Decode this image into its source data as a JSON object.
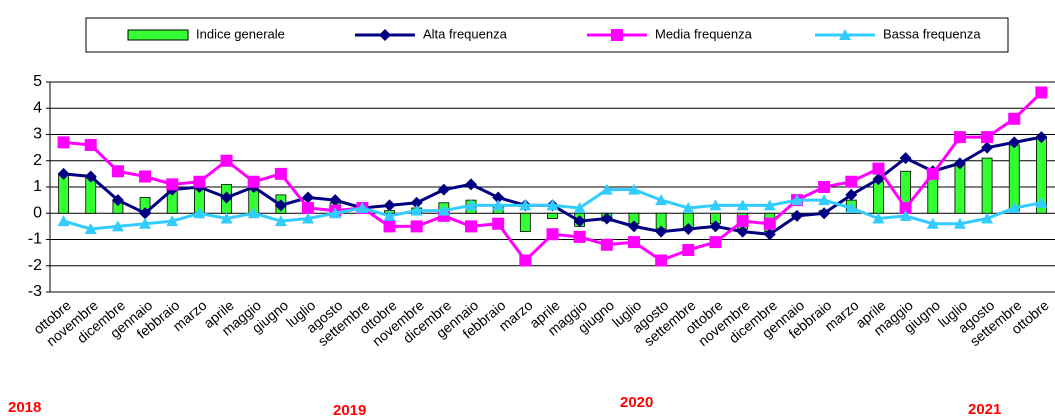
{
  "chart_data": {
    "type": "bar",
    "categories": [
      "ottobre",
      "novembre",
      "dicembre",
      "gennaio",
      "febbraio",
      "marzo",
      "aprile",
      "maggio",
      "giugno",
      "luglio",
      "agosto",
      "settembre",
      "ottobre",
      "novembre",
      "dicembre",
      "gennaio",
      "febbraio",
      "marzo",
      "aprile",
      "maggio",
      "giugno",
      "luglio",
      "agosto",
      "settembre",
      "ottobre",
      "novembre",
      "dicembre",
      "gennaio",
      "febbraio",
      "marzo",
      "aprile",
      "maggio",
      "giugno",
      "luglio",
      "agosto",
      "settembre",
      "ottobre"
    ],
    "series": [
      {
        "name": "Indice generale",
        "type": "bar",
        "color": "#33ff33",
        "values": [
          1.5,
          1.4,
          0.5,
          0.6,
          0.9,
          1.0,
          1.1,
          0.9,
          0.7,
          0.4,
          0.4,
          0.2,
          0.1,
          0.2,
          0.4,
          0.5,
          0.3,
          -0.7,
          -0.2,
          -0.5,
          -0.3,
          -0.4,
          -0.6,
          -0.6,
          -0.4,
          -0.6,
          -0.7,
          -0.1,
          0.1,
          0.5,
          1.2,
          1.6,
          1.3,
          1.9,
          2.1,
          2.6,
          2.9
        ]
      },
      {
        "name": "Alta frequenza",
        "type": "line",
        "marker": "diamond",
        "color": "#000080",
        "values": [
          1.5,
          1.4,
          0.5,
          0.0,
          0.9,
          1.0,
          0.6,
          1.0,
          0.3,
          0.6,
          0.5,
          0.2,
          0.3,
          0.4,
          0.9,
          1.1,
          0.6,
          0.3,
          0.3,
          -0.3,
          -0.2,
          -0.5,
          -0.7,
          -0.6,
          -0.5,
          -0.7,
          -0.8,
          -0.1,
          0.0,
          0.7,
          1.3,
          2.1,
          1.6,
          1.9,
          2.5,
          2.7,
          2.9
        ]
      },
      {
        "name": "Media frequenza",
        "type": "line",
        "marker": "square",
        "color": "#ff00ff",
        "values": [
          2.7,
          2.6,
          1.6,
          1.4,
          1.1,
          1.2,
          2.0,
          1.2,
          1.5,
          0.2,
          0.1,
          0.2,
          -0.5,
          -0.5,
          -0.1,
          -0.5,
          -0.4,
          -1.8,
          -0.8,
          -0.9,
          -1.2,
          -1.1,
          -1.8,
          -1.4,
          -1.1,
          -0.3,
          -0.4,
          0.5,
          1.0,
          1.2,
          1.7,
          0.2,
          1.5,
          2.9,
          2.9,
          3.6,
          4.6
        ]
      },
      {
        "name": "Bassa frequenza",
        "type": "line",
        "marker": "triangle",
        "color": "#33ccff",
        "values": [
          -0.3,
          -0.6,
          -0.5,
          -0.4,
          -0.3,
          0.0,
          -0.2,
          0.0,
          -0.3,
          -0.2,
          0.0,
          0.2,
          -0.1,
          0.1,
          0.1,
          0.3,
          0.3,
          0.3,
          0.3,
          0.2,
          0.9,
          0.9,
          0.5,
          0.2,
          0.3,
          0.3,
          0.3,
          0.5,
          0.5,
          0.2,
          -0.2,
          -0.1,
          -0.4,
          -0.4,
          -0.2,
          0.2,
          0.4
        ]
      }
    ],
    "ylim": [
      -3,
      5
    ],
    "yticks": [
      -3,
      -2,
      -1,
      0,
      1,
      2,
      3,
      4,
      5
    ],
    "grid": true,
    "legend": "top",
    "annotations": [
      "2018",
      "2019",
      "2020",
      "2021"
    ]
  }
}
